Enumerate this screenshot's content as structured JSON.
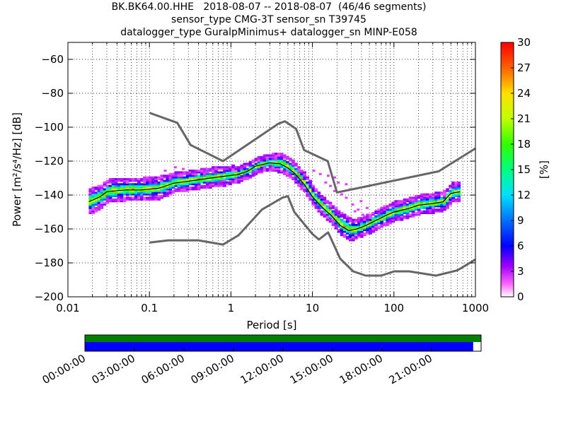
{
  "header": {
    "line1": "BK.BK64.00.HHE   2018-08-07 -- 2018-08-07  (46/46 segments)",
    "line2": "sensor_type CMG-3T sensor_sn T39745",
    "line3": "datalogger_type GuralpMinimus+ datalogger_sn MINP-E058"
  },
  "chart_data": {
    "type": "heatmap",
    "xlabel": "Period [s]",
    "ylabel": "Power [m²/s⁴/Hz] [dB]",
    "xscale": "log",
    "xlim": [
      0.01,
      1000
    ],
    "ylim": [
      -200,
      -50
    ],
    "xticks": [
      {
        "value": 0.01,
        "label": "0.01"
      },
      {
        "value": 0.1,
        "label": "0.1"
      },
      {
        "value": 1,
        "label": "1"
      },
      {
        "value": 10,
        "label": "10"
      },
      {
        "value": 100,
        "label": "100"
      },
      {
        "value": 1000,
        "label": "1000"
      }
    ],
    "yticks": [
      {
        "value": -60,
        "label": "−60"
      },
      {
        "value": -80,
        "label": "−80"
      },
      {
        "value": -100,
        "label": "−100"
      },
      {
        "value": -120,
        "label": "−120"
      },
      {
        "value": -140,
        "label": "−140"
      },
      {
        "value": -160,
        "label": "−160"
      },
      {
        "value": -180,
        "label": "−180"
      },
      {
        "value": -200,
        "label": "−200"
      }
    ],
    "grid": true,
    "colorbar": {
      "label": "[%]",
      "range": [
        0,
        30
      ],
      "ticks": [
        "0",
        "3",
        "6",
        "9",
        "12",
        "15",
        "18",
        "21",
        "24",
        "27",
        "30"
      ]
    },
    "noise_models": [
      {
        "points": [
          [
            0.1,
            -91.5
          ],
          [
            0.22,
            -97.4
          ],
          [
            0.32,
            -110.5
          ],
          [
            0.8,
            -120
          ],
          [
            3.8,
            -98
          ],
          [
            4.6,
            -96.5
          ],
          [
            6.3,
            -101
          ],
          [
            7.9,
            -113.5
          ],
          [
            15.4,
            -120
          ],
          [
            20,
            -138.5
          ],
          [
            354.8,
            -126
          ],
          [
            1000,
            -112.5
          ]
        ]
      },
      {
        "points": [
          [
            0.1,
            -168
          ],
          [
            0.17,
            -166.7
          ],
          [
            0.4,
            -166.7
          ],
          [
            0.8,
            -169.2
          ],
          [
            1.24,
            -163.7
          ],
          [
            2.4,
            -148.6
          ],
          [
            4.3,
            -141.5
          ],
          [
            5,
            -140.7
          ],
          [
            6,
            -150
          ],
          [
            10,
            -163
          ],
          [
            12,
            -166.2
          ],
          [
            15.6,
            -162
          ],
          [
            21.9,
            -177.5
          ],
          [
            31.6,
            -185
          ],
          [
            45,
            -187.5
          ],
          [
            70,
            -187.5
          ],
          [
            101,
            -185
          ],
          [
            154,
            -185
          ],
          [
            328,
            -187.5
          ],
          [
            600,
            -184.4
          ],
          [
            1000,
            -178
          ]
        ]
      }
    ],
    "mode_curve": [
      [
        0.018,
        -144
      ],
      [
        0.025,
        -141
      ],
      [
        0.03,
        -138
      ],
      [
        0.05,
        -137
      ],
      [
        0.08,
        -137
      ],
      [
        0.13,
        -136
      ],
      [
        0.2,
        -133
      ],
      [
        0.4,
        -131
      ],
      [
        0.8,
        -129
      ],
      [
        1.2,
        -128
      ],
      [
        1.6,
        -126
      ],
      [
        2.0,
        -123
      ],
      [
        3.0,
        -121
      ],
      [
        4.0,
        -121.5
      ],
      [
        5.0,
        -124
      ],
      [
        6.0,
        -127
      ],
      [
        8.0,
        -134
      ],
      [
        10,
        -141
      ],
      [
        13,
        -147
      ],
      [
        17,
        -152
      ],
      [
        22,
        -158
      ],
      [
        28,
        -161
      ],
      [
        35,
        -160
      ],
      [
        45,
        -158
      ],
      [
        60,
        -155
      ],
      [
        80,
        -152
      ],
      [
        100,
        -150
      ],
      [
        150,
        -148
      ],
      [
        200,
        -146
      ],
      [
        300,
        -145
      ],
      [
        400,
        -144
      ],
      [
        500,
        -139
      ],
      [
        650,
        -138
      ]
    ],
    "density_band_halfwidth_db": [
      5,
      4,
      4,
      4,
      4,
      4,
      3,
      3,
      3,
      2,
      2,
      2,
      2,
      3,
      3,
      3,
      3,
      3,
      3,
      3,
      4,
      4,
      3,
      3,
      3,
      3,
      3,
      3,
      3,
      3,
      3,
      3,
      3
    ],
    "magenta_scatter": [
      [
        10,
        -126
      ],
      [
        12,
        -128
      ],
      [
        14,
        -133
      ],
      [
        16,
        -135
      ],
      [
        18,
        -138
      ],
      [
        22,
        -140
      ],
      [
        25,
        -142
      ],
      [
        30,
        -146
      ],
      [
        35,
        -149
      ],
      [
        40,
        -152
      ],
      [
        18,
        -130
      ],
      [
        20,
        -133
      ],
      [
        28,
        -137
      ],
      [
        38,
        -144
      ],
      [
        45,
        -148
      ],
      [
        15,
        -129
      ],
      [
        25,
        -134
      ],
      [
        32,
        -150
      ],
      [
        0.2,
        -124
      ],
      [
        0.25,
        -125
      ],
      [
        0.3,
        -127
      ],
      [
        0.15,
        -126
      ],
      [
        0.35,
        -128
      ]
    ]
  },
  "timeline": {
    "ticks": [
      "00:00:00",
      "03:00:00",
      "06:00:00",
      "09:00:00",
      "12:00:00",
      "15:00:00",
      "18:00:00",
      "21:00:00"
    ],
    "top_bar_coverage": 1.0,
    "bottom_bar_coverage": 0.98,
    "colors": {
      "top": "#007f00",
      "bottom": "#0000ff"
    }
  }
}
